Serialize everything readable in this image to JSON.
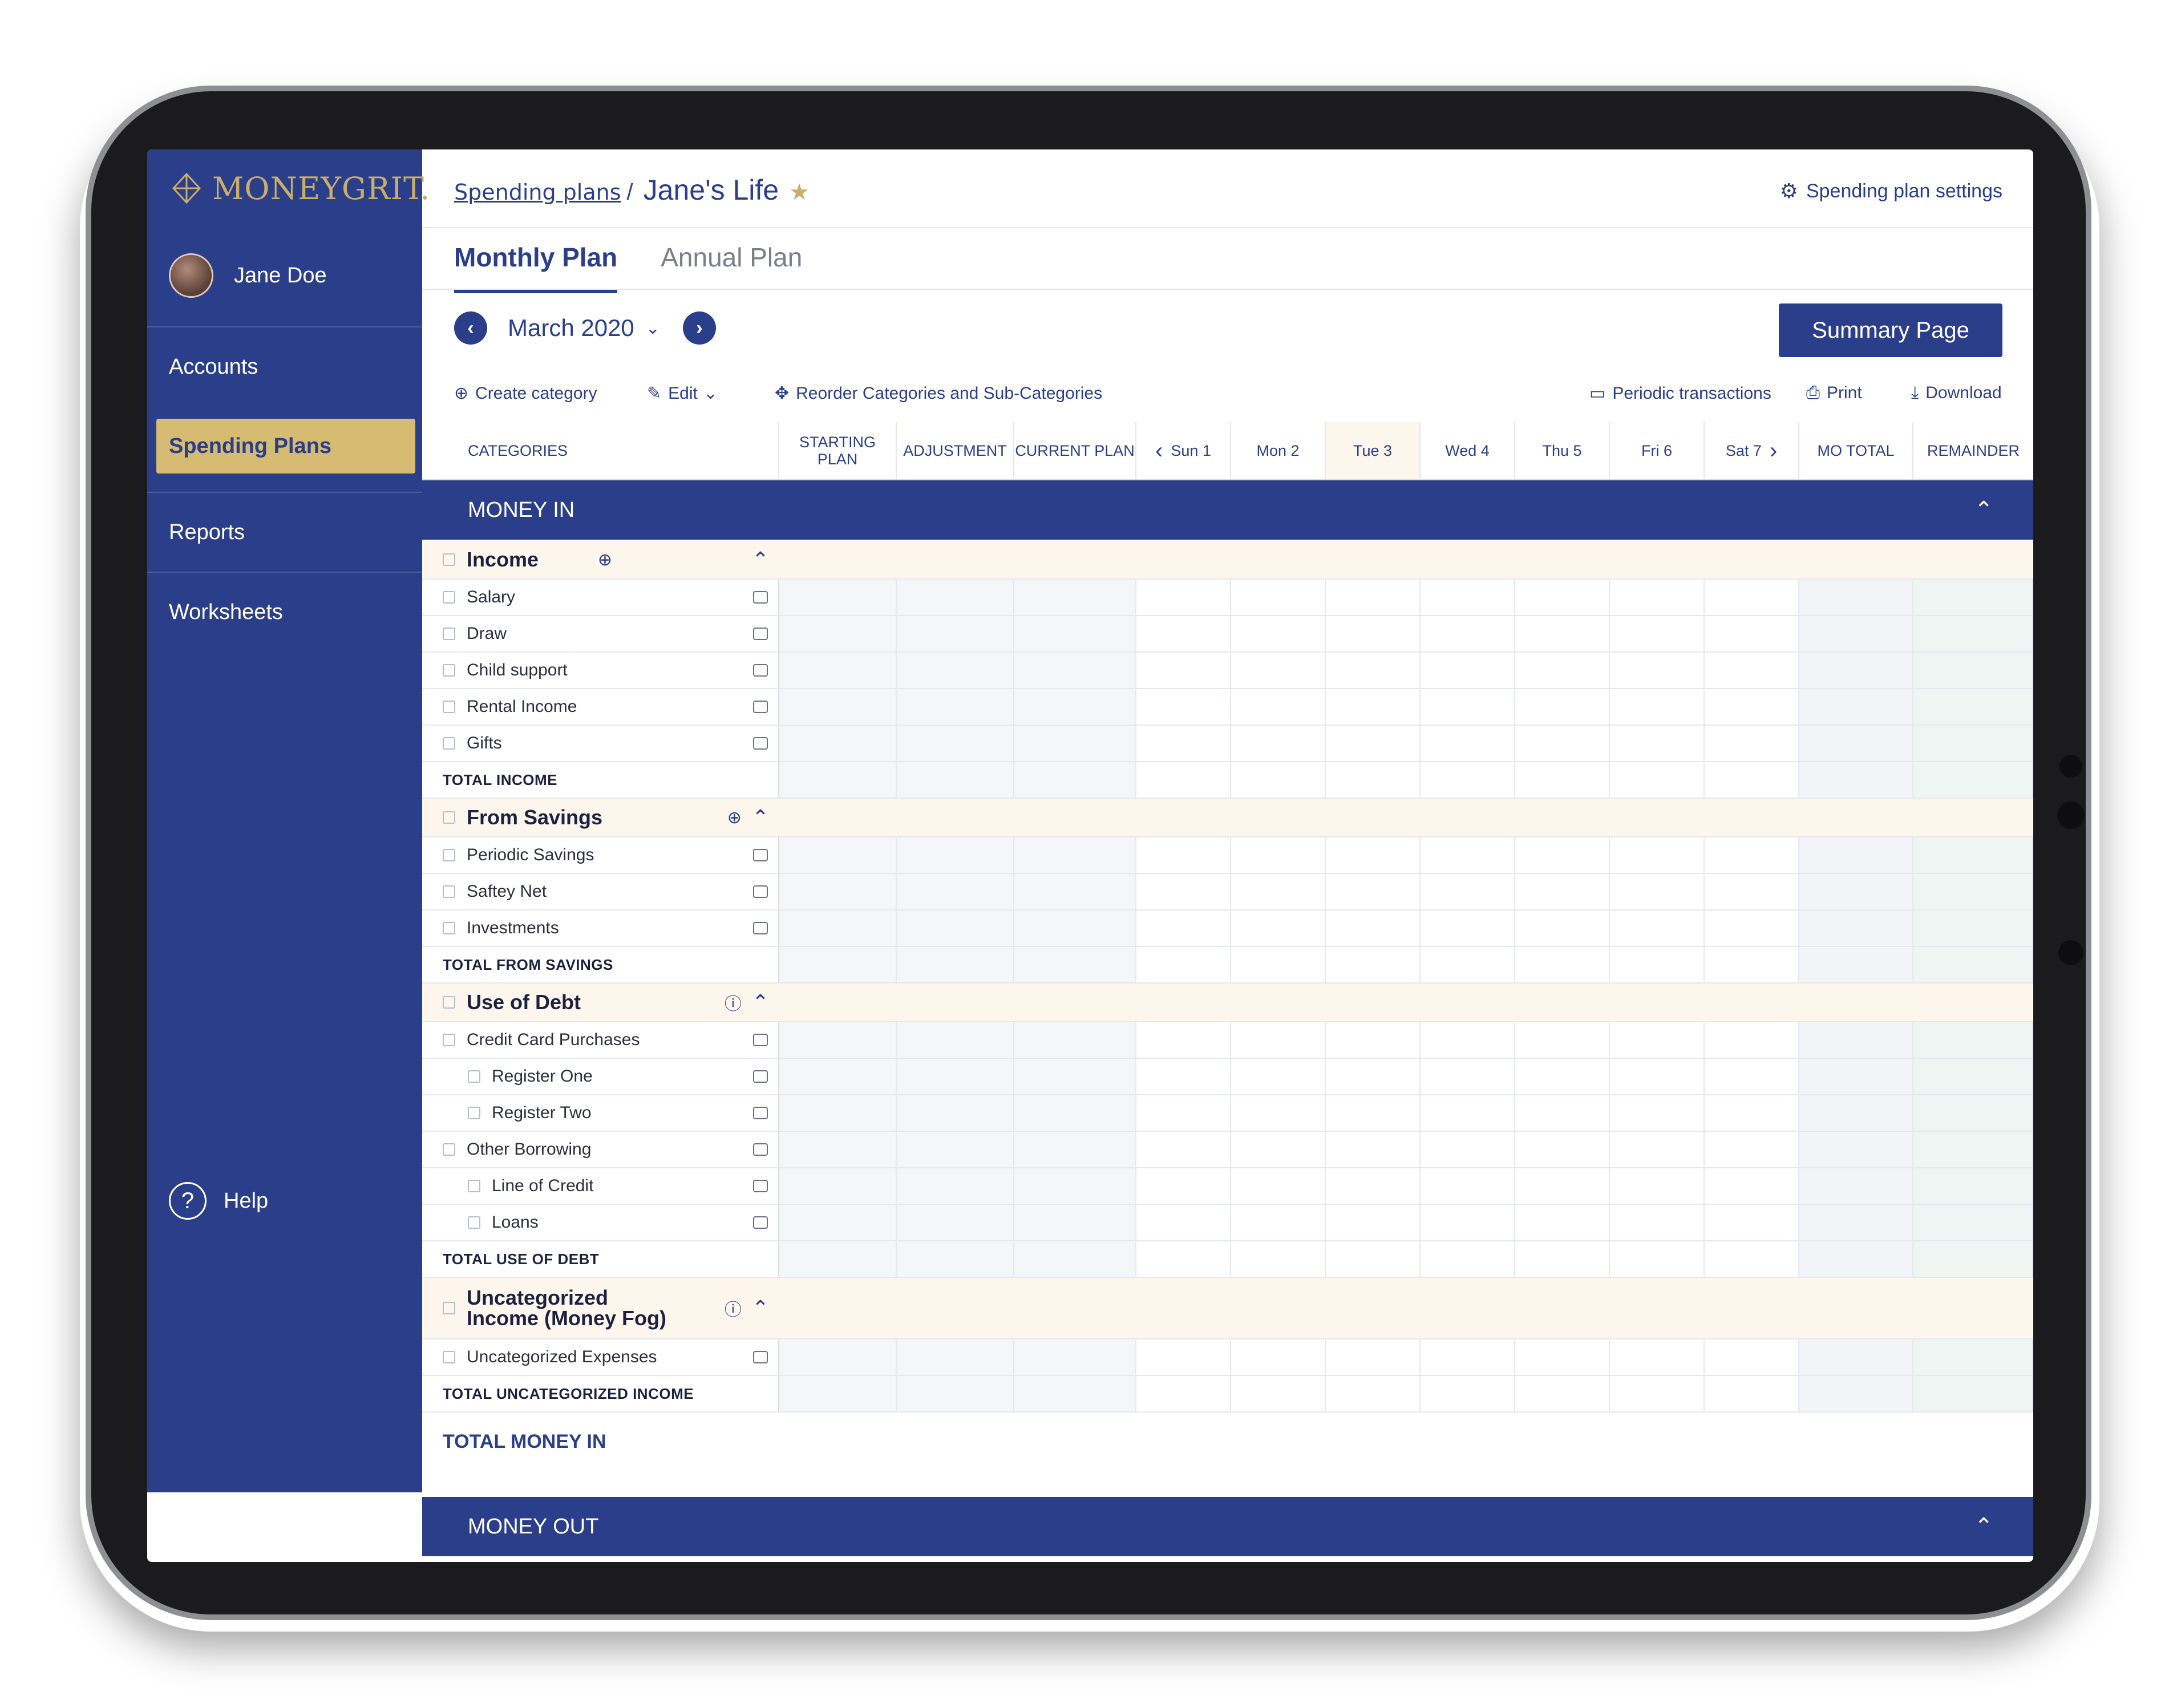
{
  "brand": {
    "logo_text": "MONEYGRIT."
  },
  "user": {
    "name": "Jane Doe"
  },
  "sidebar": {
    "items": [
      {
        "label": "Accounts"
      },
      {
        "label": "Spending Plans"
      },
      {
        "label": "Reports"
      },
      {
        "label": "Worksheets"
      }
    ],
    "help_label": "Help"
  },
  "header": {
    "breadcrumb_link": "Spending plans",
    "breadcrumb_sep": "/",
    "breadcrumb_current": "Jane's Life",
    "settings_label": "Spending plan settings"
  },
  "tabs": [
    {
      "label": "Monthly Plan"
    },
    {
      "label": "Annual Plan"
    }
  ],
  "month": {
    "label": "March 2020"
  },
  "summary_button": "Summary Page",
  "toolbar": {
    "create": "Create category",
    "edit": "Edit",
    "reorder": "Reorder Categories and Sub-Categories",
    "periodic": "Periodic transactions",
    "print": "Print",
    "download": "Download"
  },
  "columns": {
    "categories": "CATEGORIES",
    "starting_plan": "STARTING PLAN",
    "adjustment": "ADJUSTMENT",
    "current_plan": "CURRENT PLAN",
    "days": [
      "Sun 1",
      "Mon 2",
      "Tue 3",
      "Wed 4",
      "Thu 5",
      "Fri 6",
      "Sat 7"
    ],
    "mo_total": "MO TOTAL",
    "remainder": "REMAINDER"
  },
  "sections": {
    "money_in": "MONEY IN",
    "money_out": "MONEY OUT",
    "total_money_in": "TOTAL MONEY IN"
  },
  "rows": [
    {
      "type": "group",
      "label": "Income"
    },
    {
      "type": "item",
      "label": "Salary"
    },
    {
      "type": "item",
      "label": "Draw"
    },
    {
      "type": "item",
      "label": "Child support"
    },
    {
      "type": "item",
      "label": "Rental Income"
    },
    {
      "type": "item",
      "label": "Gifts"
    },
    {
      "type": "total",
      "label": "TOTAL INCOME"
    },
    {
      "type": "group",
      "label": "From Savings"
    },
    {
      "type": "item",
      "label": "Periodic Savings"
    },
    {
      "type": "item",
      "label": "Saftey Net"
    },
    {
      "type": "item",
      "label": "Investments"
    },
    {
      "type": "total",
      "label": "TOTAL FROM SAVINGS"
    },
    {
      "type": "group",
      "label": "Use of Debt"
    },
    {
      "type": "item",
      "label": "Credit Card Purchases"
    },
    {
      "type": "sub",
      "label": "Register One"
    },
    {
      "type": "sub",
      "label": "Register Two"
    },
    {
      "type": "item",
      "label": "Other Borrowing"
    },
    {
      "type": "sub",
      "label": "Line of Credit"
    },
    {
      "type": "sub",
      "label": "Loans"
    },
    {
      "type": "total",
      "label": "TOTAL USE OF DEBT"
    },
    {
      "type": "group",
      "label": "Uncategorized Income (Money Fog)"
    },
    {
      "type": "item",
      "label": "Uncategorized Expenses"
    },
    {
      "type": "total",
      "label": "TOTAL UNCATEGORIZED INCOME"
    }
  ],
  "colors": {
    "navy": "#2b3e8a",
    "gold": "#d6bb72",
    "group_bg": "#fcf6ec"
  }
}
